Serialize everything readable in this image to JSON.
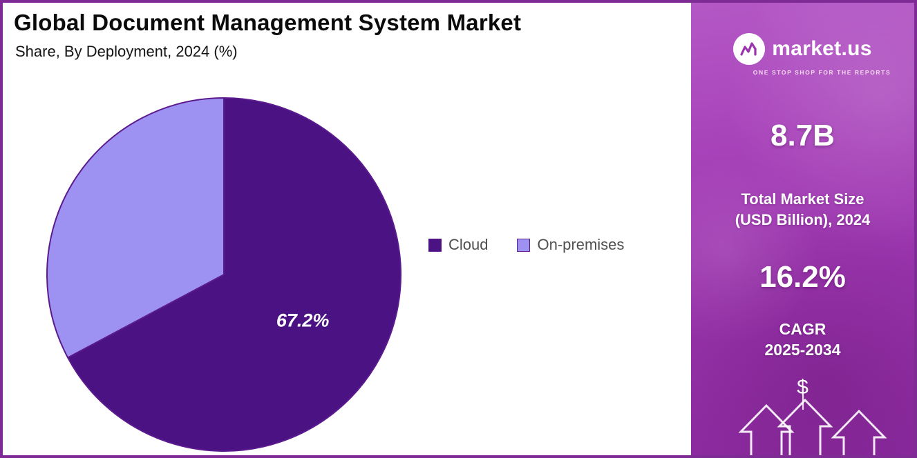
{
  "header": {
    "title": "Global Document Management System Market",
    "subtitle": "Share, By Deployment, 2024 (%)"
  },
  "chart_data": {
    "type": "pie",
    "title": "Global Document Management System Market Share, By Deployment, 2024 (%)",
    "unit": "%",
    "slices": [
      {
        "label": "Cloud",
        "value": 67.2,
        "color": "#4b1284",
        "data_label": "67.2%"
      },
      {
        "label": "On-premises",
        "value": 32.8,
        "color": "#9d92f2",
        "data_label": ""
      }
    ],
    "start_angle_deg": 0,
    "direction": "clockwise",
    "stroke_color": "#5b1b8f",
    "legend_position": "right"
  },
  "legend": {
    "items": [
      {
        "label": "Cloud",
        "color": "#4b1284"
      },
      {
        "label": "On-premises",
        "color": "#9d92f2"
      }
    ]
  },
  "sidebar": {
    "logo_text": "market.us",
    "logo_tagline": "ONE STOP SHOP FOR THE REPORTS",
    "market_size_value": "8.7B",
    "market_size_label": "Total Market Size (USD Billion), 2024",
    "market_size_label_line1": "Total Market Size",
    "market_size_label_line2": "(USD Billion), 2024",
    "cagr_value": "16.2%",
    "cagr_label_line1": "CAGR",
    "cagr_label_line2": "2025-2034",
    "dollar_symbol": "$",
    "gradient_top": "#b458c6",
    "gradient_bottom": "#8d2ba1"
  }
}
